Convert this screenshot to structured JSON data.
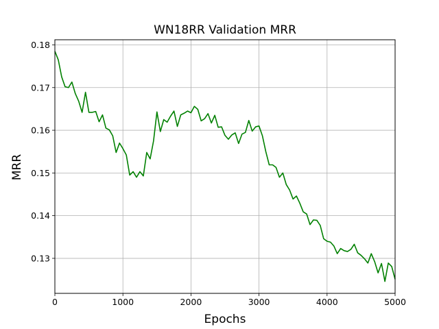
{
  "chart_data": {
    "type": "line",
    "title": "WN18RR Validation MRR",
    "xlabel": "Epochs",
    "ylabel": "MRR",
    "xlim": [
      0,
      5000
    ],
    "ylim": [
      0.1218,
      0.1812
    ],
    "xticks": [
      0,
      1000,
      2000,
      3000,
      4000,
      5000
    ],
    "xtick_labels": [
      "0",
      "1000",
      "2000",
      "3000",
      "4000",
      "5000"
    ],
    "yticks": [
      0.13,
      0.14,
      0.15,
      0.16,
      0.17,
      0.18
    ],
    "ytick_labels": [
      "0.13",
      "0.14",
      "0.15",
      "0.16",
      "0.17",
      "0.18"
    ],
    "grid": true,
    "series": [
      {
        "color": "#008000",
        "x": [
          0,
          50,
          100,
          150,
          200,
          250,
          300,
          350,
          400,
          450,
          500,
          550,
          600,
          650,
          700,
          750,
          800,
          850,
          900,
          950,
          1000,
          1050,
          1100,
          1150,
          1200,
          1250,
          1300,
          1350,
          1400,
          1450,
          1500,
          1550,
          1600,
          1650,
          1700,
          1750,
          1800,
          1850,
          1900,
          1950,
          2000,
          2050,
          2100,
          2150,
          2200,
          2250,
          2300,
          2350,
          2400,
          2450,
          2500,
          2550,
          2600,
          2650,
          2700,
          2750,
          2800,
          2850,
          2900,
          2950,
          3000,
          3050,
          3100,
          3150,
          3200,
          3250,
          3300,
          3350,
          3400,
          3450,
          3500,
          3550,
          3600,
          3650,
          3700,
          3750,
          3800,
          3850,
          3900,
          3950,
          4000,
          4050,
          4100,
          4150,
          4200,
          4250,
          4300,
          4350,
          4400,
          4450,
          4500,
          4550,
          4600,
          4650,
          4700,
          4750,
          4800,
          4850,
          4900,
          4950,
          5000
        ],
        "y": [
          0.1785,
          0.1765,
          0.1725,
          0.1702,
          0.17,
          0.1713,
          0.1686,
          0.1668,
          0.1642,
          0.1689,
          0.1642,
          0.1642,
          0.1644,
          0.162,
          0.1636,
          0.1605,
          0.1601,
          0.1587,
          0.1548,
          0.157,
          0.1557,
          0.1542,
          0.1495,
          0.1503,
          0.149,
          0.1503,
          0.1493,
          0.1548,
          0.1533,
          0.1575,
          0.1643,
          0.1597,
          0.1625,
          0.1619,
          0.1633,
          0.1645,
          0.1609,
          0.1636,
          0.164,
          0.1645,
          0.1641,
          0.1656,
          0.1649,
          0.1622,
          0.1627,
          0.1639,
          0.1617,
          0.1635,
          0.1607,
          0.1608,
          0.1588,
          0.1579,
          0.1589,
          0.1594,
          0.1569,
          0.1591,
          0.1595,
          0.1623,
          0.1598,
          0.1608,
          0.161,
          0.1587,
          0.155,
          0.1519,
          0.1519,
          0.1513,
          0.149,
          0.15,
          0.1473,
          0.146,
          0.1439,
          0.1446,
          0.1429,
          0.1409,
          0.1404,
          0.1379,
          0.139,
          0.1389,
          0.1377,
          0.1346,
          0.134,
          0.1338,
          0.1329,
          0.1311,
          0.1323,
          0.1318,
          0.1316,
          0.1321,
          0.1333,
          0.1313,
          0.1307,
          0.1299,
          0.1289,
          0.1311,
          0.1292,
          0.1266,
          0.1288,
          0.1246,
          0.1289,
          0.1281,
          0.1251
        ]
      }
    ]
  }
}
